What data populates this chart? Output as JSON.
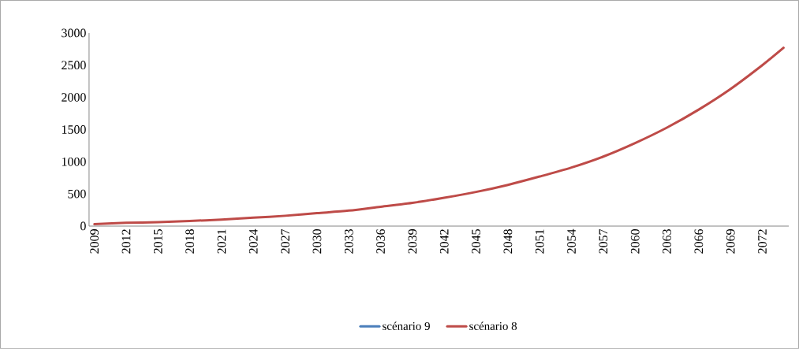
{
  "chart_data": {
    "type": "line",
    "x": [
      2009,
      2012,
      2015,
      2018,
      2021,
      2024,
      2027,
      2030,
      2033,
      2036,
      2039,
      2042,
      2045,
      2048,
      2051,
      2054,
      2057,
      2060,
      2063,
      2066,
      2069,
      2072,
      2074
    ],
    "xlim": [
      2008.5,
      2074.5
    ],
    "xticks": [
      2009,
      2012,
      2015,
      2018,
      2021,
      2024,
      2027,
      2030,
      2033,
      2036,
      2039,
      2042,
      2045,
      2048,
      2051,
      2054,
      2057,
      2060,
      2063,
      2066,
      2069,
      2072
    ],
    "ylim": [
      0,
      3000
    ],
    "yticks": [
      0,
      500,
      1000,
      1500,
      2000,
      2500,
      3000
    ],
    "series": [
      {
        "name": "scénario 9",
        "color": "#4a7ebb",
        "values": [
          null,
          null,
          null,
          null,
          null,
          null,
          null,
          null,
          null,
          null,
          null,
          null,
          null,
          null,
          null,
          null,
          null,
          null,
          null,
          null,
          null,
          null,
          null
        ]
      },
      {
        "name": "scénario 8",
        "color": "#be4b48",
        "values": [
          30,
          50,
          60,
          80,
          100,
          130,
          160,
          200,
          240,
          300,
          360,
          440,
          530,
          640,
          770,
          910,
          1080,
          1290,
          1530,
          1810,
          2130,
          2500,
          2770
        ]
      }
    ],
    "legend": "bottom",
    "grid": false,
    "line_style": "solid",
    "marker": "none"
  }
}
